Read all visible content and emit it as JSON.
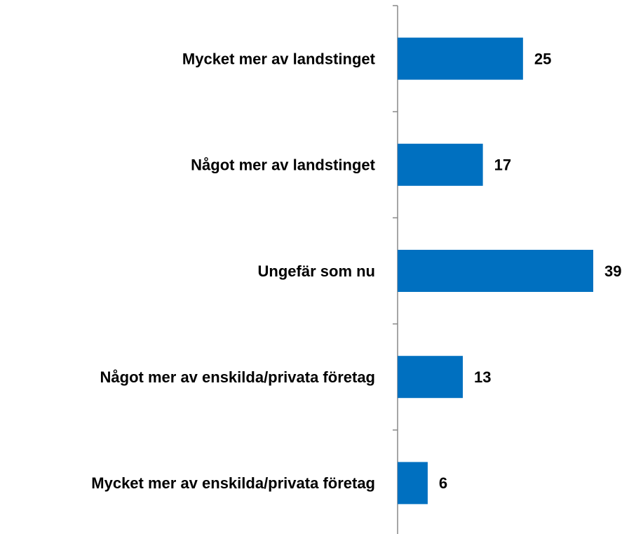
{
  "chart_data": {
    "type": "barh",
    "categories": [
      "Mycket mer av landstinget",
      "Något mer av landstinget",
      "Ungefär som nu",
      "Något mer av enskilda/privata företag",
      "Mycket mer av enskilda/privata företag"
    ],
    "values": [
      25,
      17,
      39,
      13,
      6
    ],
    "color": "#0070c0"
  }
}
